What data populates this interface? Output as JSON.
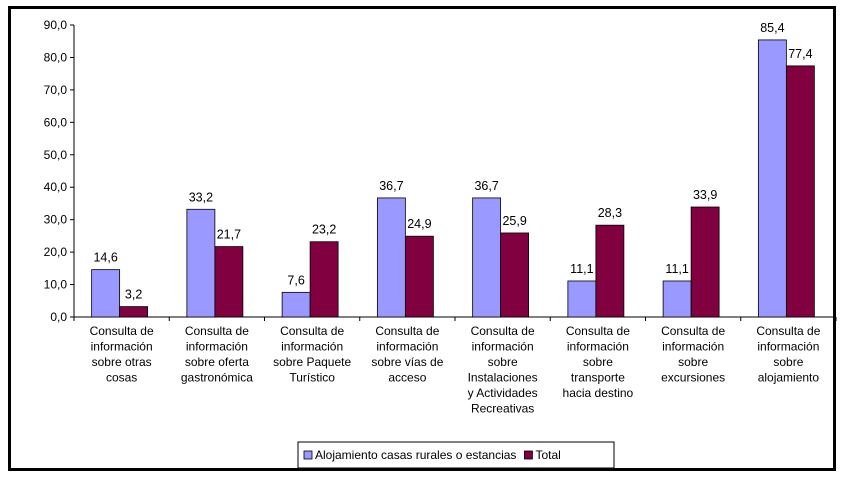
{
  "chart_data": {
    "type": "bar",
    "categories": [
      [
        "Consulta de",
        "información",
        "sobre otras",
        "cosas"
      ],
      [
        "Consulta de",
        "información",
        "sobre oferta",
        "gastronómica"
      ],
      [
        "Consulta de",
        "información",
        "sobre Paquete",
        "Turístico"
      ],
      [
        "Consulta de",
        "información",
        "sobre vías de",
        "acceso"
      ],
      [
        "Consulta de",
        "información",
        "sobre",
        "Instalaciones",
        "y Actividades",
        "Recreativas"
      ],
      [
        "Consulta de",
        "información",
        "sobre",
        "transporte",
        "hacia destino"
      ],
      [
        "Consulta de",
        "información",
        "sobre",
        "excursiones"
      ],
      [
        "Consulta de",
        "información",
        "sobre",
        "alojamiento"
      ]
    ],
    "series": [
      {
        "name": "Alojamiento casas rurales o estancias",
        "color": "#9999ff",
        "values": [
          14.6,
          33.2,
          7.6,
          36.7,
          36.7,
          11.1,
          11.1,
          85.4
        ],
        "labels": [
          "14,6",
          "33,2",
          "7,6",
          "36,7",
          "36,7",
          "11,1",
          "11,1",
          "85,4"
        ]
      },
      {
        "name": "Total",
        "color": "#800040",
        "values": [
          3.2,
          21.7,
          23.2,
          24.9,
          25.9,
          28.3,
          33.9,
          77.4
        ],
        "labels": [
          "3,2",
          "21,7",
          "23,2",
          "24,9",
          "25,9",
          "28,3",
          "33,9",
          "77,4"
        ]
      }
    ],
    "yticks": [
      "0,0",
      "10,0",
      "20,0",
      "30,0",
      "40,0",
      "50,0",
      "60,0",
      "70,0",
      "80,0",
      "90,0"
    ],
    "ylim": [
      0,
      90
    ],
    "grid": false,
    "legend": "bottom-center",
    "title": "",
    "xlabel": "",
    "ylabel": ""
  }
}
